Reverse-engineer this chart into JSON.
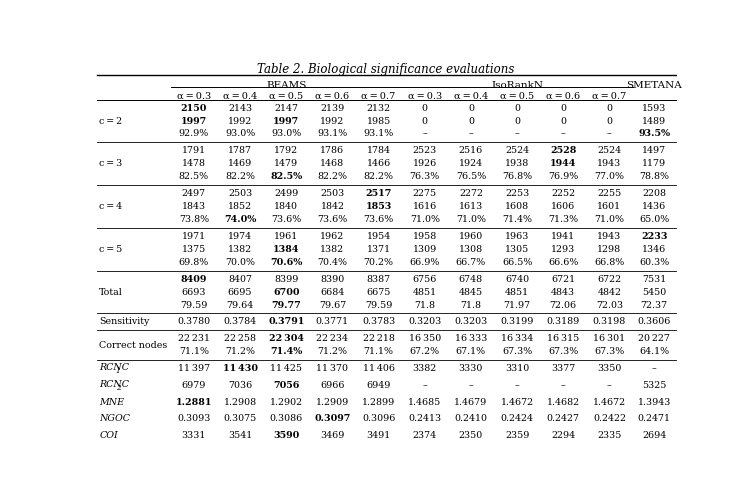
{
  "title": "Table 2. Biological significance evaluations",
  "beams_label": "BEAMS",
  "isorank_label": "IsoRankN",
  "smetana_label": "SMETANA",
  "alpha_headers": [
    "α = 0.3",
    "α = 0.4",
    "α = 0.5",
    "α = 0.6",
    "α = 0.7",
    "α = 0.3",
    "α = 0.4",
    "α = 0.5",
    "α = 0.6",
    "α = 0.7"
  ],
  "rows": [
    {
      "label": "c = 2",
      "italic": false,
      "sub_rows": [
        [
          "**2150**",
          "2143",
          "2147",
          "2139",
          "2132",
          "0",
          "0",
          "0",
          "0",
          "0",
          "1593"
        ],
        [
          "**1997**",
          "1992",
          "**1997**",
          "1992",
          "1985",
          "0",
          "0",
          "0",
          "0",
          "0",
          "1489"
        ],
        [
          "92.9%",
          "93.0%",
          "93.0%",
          "93.1%",
          "93.1%",
          "–",
          "–",
          "–",
          "–",
          "–",
          "**93.5%**"
        ]
      ],
      "sep_after": true
    },
    {
      "label": "c = 3",
      "italic": false,
      "sub_rows": [
        [
          "1791",
          "1787",
          "1792",
          "1786",
          "1784",
          "2523",
          "2516",
          "2524",
          "**2528**",
          "2524",
          "1497"
        ],
        [
          "1478",
          "1469",
          "1479",
          "1468",
          "1466",
          "1926",
          "1924",
          "1938",
          "**1944**",
          "1943",
          "1179"
        ],
        [
          "82.5%",
          "82.2%",
          "**82.5%**",
          "82.2%",
          "82.2%",
          "76.3%",
          "76.5%",
          "76.8%",
          "76.9%",
          "77.0%",
          "78.8%"
        ]
      ],
      "sep_after": true
    },
    {
      "label": "c = 4",
      "italic": false,
      "sub_rows": [
        [
          "2497",
          "2503",
          "2499",
          "2503",
          "**2517**",
          "2275",
          "2272",
          "2253",
          "2252",
          "2255",
          "2208"
        ],
        [
          "1843",
          "1852",
          "1840",
          "1842",
          "**1853**",
          "1616",
          "1613",
          "1608",
          "1606",
          "1601",
          "1436"
        ],
        [
          "73.8%",
          "**74.0%**",
          "73.6%",
          "73.6%",
          "73.6%",
          "71.0%",
          "71.0%",
          "71.4%",
          "71.3%",
          "71.0%",
          "65.0%"
        ]
      ],
      "sep_after": true
    },
    {
      "label": "c = 5",
      "italic": false,
      "sub_rows": [
        [
          "1971",
          "1974",
          "1961",
          "1962",
          "1954",
          "1958",
          "1960",
          "1963",
          "1941",
          "1943",
          "**2233**"
        ],
        [
          "1375",
          "1382",
          "**1384**",
          "1382",
          "1371",
          "1309",
          "1308",
          "1305",
          "1293",
          "1298",
          "1346"
        ],
        [
          "69.8%",
          "70.0%",
          "**70.6%**",
          "70.4%",
          "70.2%",
          "66.9%",
          "66.7%",
          "66.5%",
          "66.6%",
          "66.8%",
          "60.3%"
        ]
      ],
      "sep_after": true
    },
    {
      "label": "Total",
      "italic": false,
      "sub_rows": [
        [
          "**8409**",
          "8407",
          "8399",
          "8390",
          "8387",
          "6756",
          "6748",
          "6740",
          "6721",
          "6722",
          "7531"
        ],
        [
          "6693",
          "6695",
          "**6700**",
          "6684",
          "6675",
          "4851",
          "4845",
          "4851",
          "4843",
          "4842",
          "5450"
        ],
        [
          "79.59",
          "79.64",
          "**79.77**",
          "79.67",
          "79.59",
          "71.8",
          "71.8",
          "71.97",
          "72.06",
          "72.03",
          "72.37"
        ]
      ],
      "sep_after": true
    },
    {
      "label": "Sensitivity",
      "italic": false,
      "sub_rows": [
        [
          "0.3780",
          "0.3784",
          "**0.3791**",
          "0.3771",
          "0.3783",
          "0.3203",
          "0.3203",
          "0.3199",
          "0.3189",
          "0.3198",
          "0.3606"
        ]
      ],
      "sep_after": true
    },
    {
      "label": "Correct nodes",
      "italic": false,
      "sub_rows": [
        [
          "22 231",
          "22 258",
          "**22 304**",
          "22 234",
          "22 218",
          "16 350",
          "16 333",
          "16 334",
          "16 315",
          "16 301",
          "20 227"
        ],
        [
          "71.1%",
          "71.2%",
          "**71.4%**",
          "71.2%",
          "71.1%",
          "67.2%",
          "67.1%",
          "67.3%",
          "67.3%",
          "67.3%",
          "64.1%"
        ]
      ],
      "sep_after": true
    },
    {
      "label": "RCNC",
      "label_sub": "1",
      "italic": true,
      "sub_rows": [
        [
          "11 397",
          "**11 430**",
          "11 425",
          "11 370",
          "11 406",
          "3382",
          "3330",
          "3310",
          "3377",
          "3350",
          "–"
        ]
      ],
      "sep_after": false
    },
    {
      "label": "RCNC",
      "label_sub": "2",
      "italic": true,
      "sub_rows": [
        [
          "6979",
          "7036",
          "**7056**",
          "6966",
          "6949",
          "–",
          "–",
          "–",
          "–",
          "–",
          "5325"
        ]
      ],
      "sep_after": false
    },
    {
      "label": "MNE",
      "italic": true,
      "sub_rows": [
        [
          "**1.2881**",
          "1.2908",
          "1.2902",
          "1.2909",
          "1.2899",
          "1.4685",
          "1.4679",
          "1.4672",
          "1.4682",
          "1.4672",
          "1.3943"
        ]
      ],
      "sep_after": false
    },
    {
      "label": "NGOC",
      "italic": true,
      "sub_rows": [
        [
          "0.3093",
          "0.3075",
          "0.3086",
          "**0.3097**",
          "0.3096",
          "0.2413",
          "0.2410",
          "0.2424",
          "0.2427",
          "0.2422",
          "0.2471"
        ]
      ],
      "sep_after": false
    },
    {
      "label": "COI",
      "italic": true,
      "sub_rows": [
        [
          "3331",
          "3541",
          "**3590**",
          "3469",
          "3491",
          "2374",
          "2350",
          "2359",
          "2294",
          "2335",
          "2694"
        ]
      ],
      "sep_after": false
    }
  ],
  "figsize": [
    7.52,
    4.96
  ],
  "dpi": 100
}
